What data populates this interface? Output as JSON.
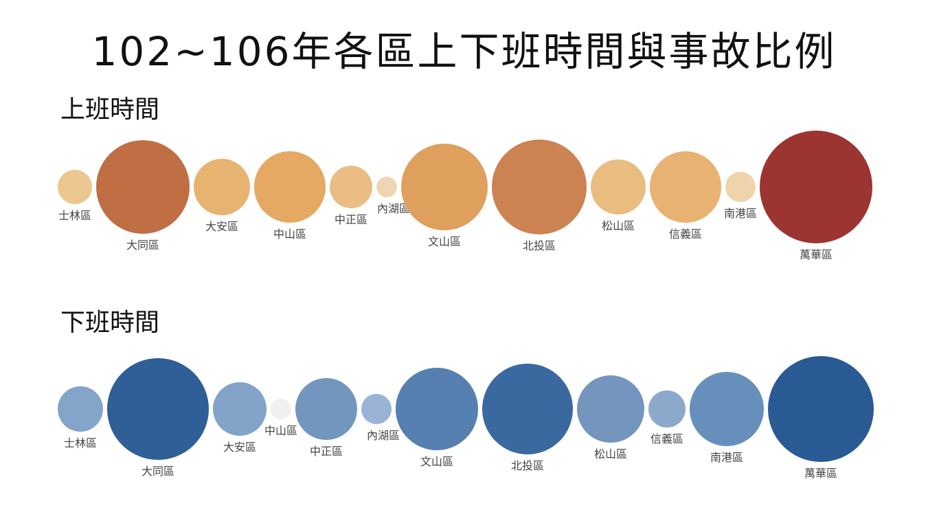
{
  "title": "102~106年各區上下班時間與事故比例",
  "chart_data": [
    {
      "type": "bubble",
      "title": "上班時間",
      "colors": [
        "#efd4ab",
        "#e8b679",
        "#e0a258",
        "#c87a4c",
        "#9b3431"
      ],
      "categories": [
        "士林區",
        "大同區",
        "大安區",
        "中山區",
        "中正區",
        "內湖區",
        "文山區",
        "北投區",
        "松山區",
        "信義區",
        "南港區",
        "萬華區"
      ],
      "values": [
        25,
        68,
        41,
        52,
        31,
        15,
        63,
        69,
        40,
        52,
        22,
        82
      ],
      "fills": [
        "#ecc78f",
        "#c06e44",
        "#e7b371",
        "#e5a964",
        "#e9bd84",
        "#efd6b3",
        "#df9f5d",
        "#cc8251",
        "#e9bd80",
        "#e7b272",
        "#efd4ab",
        "#9c3431"
      ]
    },
    {
      "type": "bubble",
      "title": "下班時間",
      "colors": [
        "#f0f0f0",
        "#9ab2d3",
        "#7096c0",
        "#3a69a0",
        "#2a5a93"
      ],
      "categories": [
        "士林區",
        "大同區",
        "大安區",
        "中山區",
        "中正區",
        "內湖區",
        "文山區",
        "北投區",
        "松山區",
        "信義區",
        "南港區",
        "萬華區"
      ],
      "values": [
        33,
        74,
        39,
        15,
        45,
        22,
        60,
        66,
        49,
        27,
        54,
        77
      ],
      "fills": [
        "#85a4c9",
        "#2f5f96",
        "#84a3c8",
        "#f0f0f0",
        "#7396bf",
        "#9ab3d4",
        "#5580b0",
        "#3a69a0",
        "#7395be",
        "#8ca9cc",
        "#6690bb",
        "#2a5a93"
      ]
    }
  ]
}
